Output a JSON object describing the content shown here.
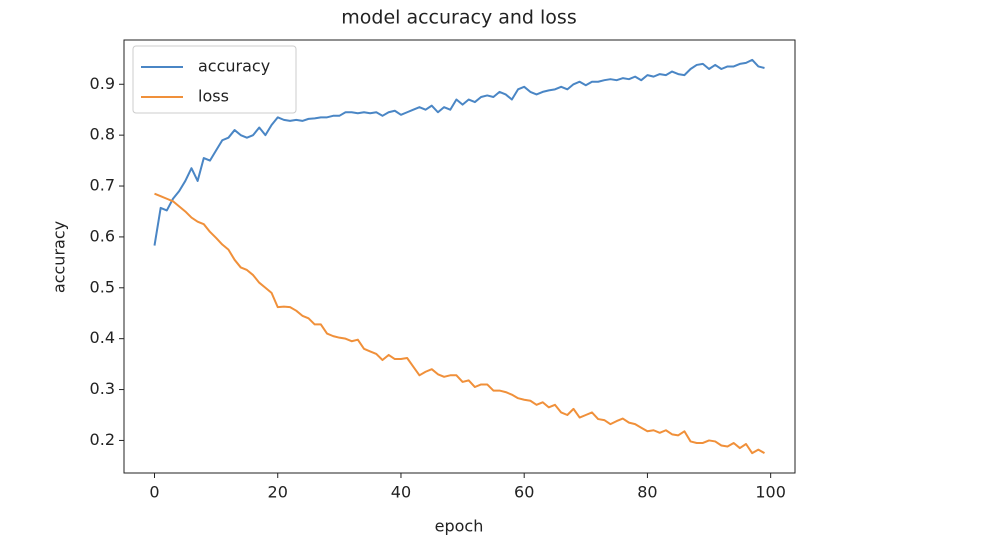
{
  "chart_data": {
    "type": "line",
    "title": "model accuracy and loss",
    "xlabel": "epoch",
    "ylabel": "accuracy",
    "x": [
      0,
      1,
      2,
      3,
      4,
      5,
      6,
      7,
      8,
      9,
      10,
      11,
      12,
      13,
      14,
      15,
      16,
      17,
      18,
      19,
      20,
      21,
      22,
      23,
      24,
      25,
      26,
      27,
      28,
      29,
      30,
      31,
      32,
      33,
      34,
      35,
      36,
      37,
      38,
      39,
      40,
      41,
      42,
      43,
      44,
      45,
      46,
      47,
      48,
      49,
      50,
      51,
      52,
      53,
      54,
      55,
      56,
      57,
      58,
      59,
      60,
      61,
      62,
      63,
      64,
      65,
      66,
      67,
      68,
      69,
      70,
      71,
      72,
      73,
      74,
      75,
      76,
      77,
      78,
      79,
      80,
      81,
      82,
      83,
      84,
      85,
      86,
      87,
      88,
      89,
      90,
      91,
      92,
      93,
      94,
      95,
      96,
      97,
      98,
      99
    ],
    "series": [
      {
        "name": "accuracy",
        "color": "#4a86c5",
        "values": [
          0.583,
          0.657,
          0.652,
          0.675,
          0.69,
          0.71,
          0.735,
          0.71,
          0.755,
          0.75,
          0.77,
          0.79,
          0.795,
          0.81,
          0.8,
          0.795,
          0.8,
          0.815,
          0.8,
          0.82,
          0.835,
          0.83,
          0.828,
          0.83,
          0.828,
          0.832,
          0.833,
          0.835,
          0.835,
          0.838,
          0.838,
          0.845,
          0.845,
          0.843,
          0.845,
          0.843,
          0.845,
          0.838,
          0.845,
          0.848,
          0.84,
          0.845,
          0.85,
          0.855,
          0.85,
          0.858,
          0.845,
          0.855,
          0.85,
          0.87,
          0.86,
          0.87,
          0.865,
          0.875,
          0.878,
          0.875,
          0.885,
          0.88,
          0.87,
          0.89,
          0.895,
          0.885,
          0.88,
          0.885,
          0.888,
          0.89,
          0.895,
          0.89,
          0.9,
          0.905,
          0.898,
          0.905,
          0.905,
          0.908,
          0.91,
          0.908,
          0.912,
          0.91,
          0.915,
          0.908,
          0.918,
          0.915,
          0.92,
          0.918,
          0.925,
          0.92,
          0.918,
          0.93,
          0.938,
          0.94,
          0.93,
          0.938,
          0.93,
          0.935,
          0.935,
          0.94,
          0.942,
          0.948,
          0.935,
          0.932
        ]
      },
      {
        "name": "loss",
        "color": "#f0903a",
        "values": [
          0.685,
          0.68,
          0.675,
          0.67,
          0.66,
          0.65,
          0.638,
          0.63,
          0.625,
          0.61,
          0.598,
          0.585,
          0.575,
          0.555,
          0.54,
          0.535,
          0.525,
          0.51,
          0.5,
          0.49,
          0.462,
          0.463,
          0.462,
          0.455,
          0.445,
          0.44,
          0.428,
          0.428,
          0.41,
          0.405,
          0.402,
          0.4,
          0.395,
          0.398,
          0.38,
          0.375,
          0.37,
          0.358,
          0.368,
          0.36,
          0.36,
          0.362,
          0.345,
          0.328,
          0.335,
          0.34,
          0.33,
          0.325,
          0.328,
          0.328,
          0.315,
          0.318,
          0.305,
          0.31,
          0.31,
          0.298,
          0.298,
          0.295,
          0.29,
          0.283,
          0.28,
          0.278,
          0.27,
          0.275,
          0.265,
          0.27,
          0.255,
          0.25,
          0.262,
          0.245,
          0.25,
          0.255,
          0.242,
          0.24,
          0.232,
          0.238,
          0.243,
          0.235,
          0.232,
          0.225,
          0.218,
          0.22,
          0.215,
          0.22,
          0.212,
          0.21,
          0.218,
          0.198,
          0.195,
          0.195,
          0.2,
          0.198,
          0.19,
          0.188,
          0.195,
          0.185,
          0.193,
          0.175,
          0.182,
          0.175
        ]
      }
    ],
    "xlim": [
      -4.95,
      103.95
    ],
    "ylim": [
      0.136,
      0.987
    ],
    "xticks": [
      0,
      20,
      40,
      60,
      80,
      100
    ],
    "yticks": [
      0.2,
      0.3,
      0.4,
      0.5,
      0.6,
      0.7,
      0.8,
      0.9
    ],
    "legend": "upper left",
    "grid": false
  }
}
